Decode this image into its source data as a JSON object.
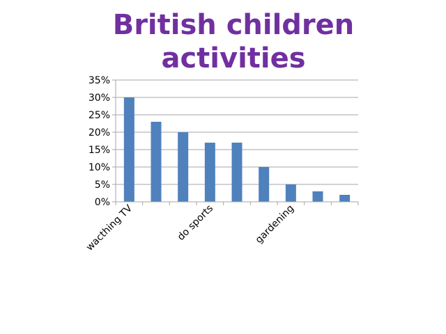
{
  "chart_data": {
    "type": "bar",
    "title": "British children activities",
    "xlabel": "",
    "ylabel": "",
    "categories": [
      "wacthing TV",
      "",
      "",
      "do sports",
      "",
      "",
      "gardening",
      "",
      ""
    ],
    "values": [
      30,
      23,
      20,
      17,
      17,
      10,
      5,
      3,
      2
    ],
    "value_format": "percent",
    "ylim": [
      0,
      35
    ],
    "yticks": [
      0,
      5,
      10,
      15,
      20,
      25,
      30,
      35
    ],
    "ytick_labels": [
      "0%",
      "5%",
      "10%",
      "15%",
      "20%",
      "25%",
      "30%",
      "35%"
    ],
    "x_tick_labels": [
      {
        "index": 0,
        "text": "wacthing TV"
      },
      {
        "index": 3,
        "text": "do sports"
      },
      {
        "index": 6,
        "text": "gardening"
      }
    ],
    "grid": true,
    "legend": "none",
    "bar_color": "#4f81bd",
    "grid_color": "#a6a6a6",
    "title_color": "#7030a0"
  }
}
